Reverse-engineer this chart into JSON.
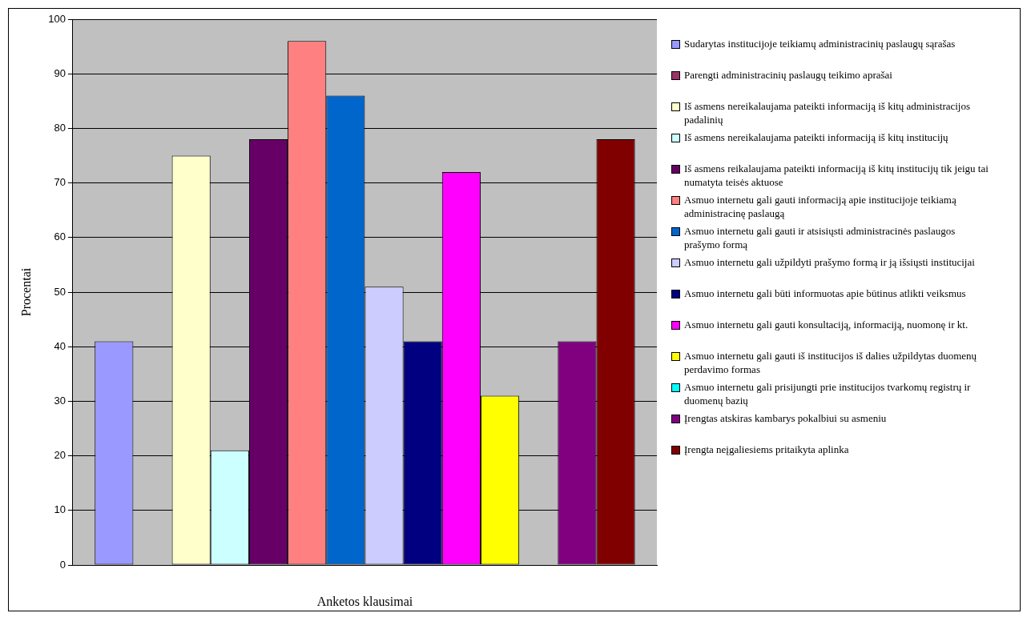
{
  "chart_data": {
    "type": "bar",
    "xlabel": "Anketos klausimai",
    "ylabel": "Procentai",
    "categories": [
      null
    ],
    "series": [
      {
        "name": "Sudarytas institucijoje teikiamų administracinių paslaugų sąrašas",
        "color": "#9999ff",
        "values": [
          41
        ]
      },
      {
        "name": "Parengti administracinių paslaugų teikimo aprašai",
        "color": "#993366",
        "values": [
          0
        ]
      },
      {
        "name": "Iš asmens nereikalaujama pateikti informaciją iš kitų administracijos padalinių",
        "color": "#ffffcc",
        "values": [
          75
        ]
      },
      {
        "name": "Iš asmens nereikalaujama pateikti informaciją iš kitų institucijų",
        "color": "#ccffff",
        "values": [
          21
        ]
      },
      {
        "name": "Iš asmens reikalaujama pateikti informaciją iš kitų institucijų tik jeigu tai numatyta teisės aktuose",
        "color": "#660066",
        "values": [
          78
        ]
      },
      {
        "name": "Asmuo internetu gali gauti informaciją apie institucijoje teikiamą administracinę paslaugą",
        "color": "#ff8080",
        "values": [
          96
        ]
      },
      {
        "name": "Asmuo internetu gali gauti ir atsisiųsti administracinės paslaugos prašymo formą",
        "color": "#0066cc",
        "values": [
          86
        ]
      },
      {
        "name": "Asmuo internetu gali užpildyti prašymo formą ir ją išsiųsti institucijai",
        "color": "#ccccff",
        "values": [
          51
        ]
      },
      {
        "name": "Asmuo internetu gali būti informuotas apie būtinus atlikti veiksmus",
        "color": "#000080",
        "values": [
          41
        ]
      },
      {
        "name": "Asmuo internetu gali gauti konsultaciją, informaciją, nuomonę ir kt.",
        "color": "#ff00ff",
        "values": [
          72
        ]
      },
      {
        "name": "Asmuo internetu gali gauti iš institucijos iš dalies užpildytas duomenų perdavimo formas",
        "color": "#ffff00",
        "values": [
          31
        ]
      },
      {
        "name": "Asmuo internetu gali prisijungti prie institucijos tvarkomų registrų ir duomenų bazių",
        "color": "#00ffff",
        "values": [
          0
        ]
      },
      {
        "name": "Įrengtas atskiras kambarys pokalbiui su asmeniu",
        "color": "#800080",
        "values": [
          41
        ]
      },
      {
        "name": "Įrengta neįgaliesiems pritaikyta aplinka",
        "color": "#800000",
        "values": [
          78
        ]
      }
    ],
    "ylim": [
      0,
      100
    ],
    "yticks": [
      0,
      10,
      20,
      30,
      40,
      50,
      60,
      70,
      80,
      90,
      100
    ],
    "grid": "y",
    "legend": "right"
  }
}
